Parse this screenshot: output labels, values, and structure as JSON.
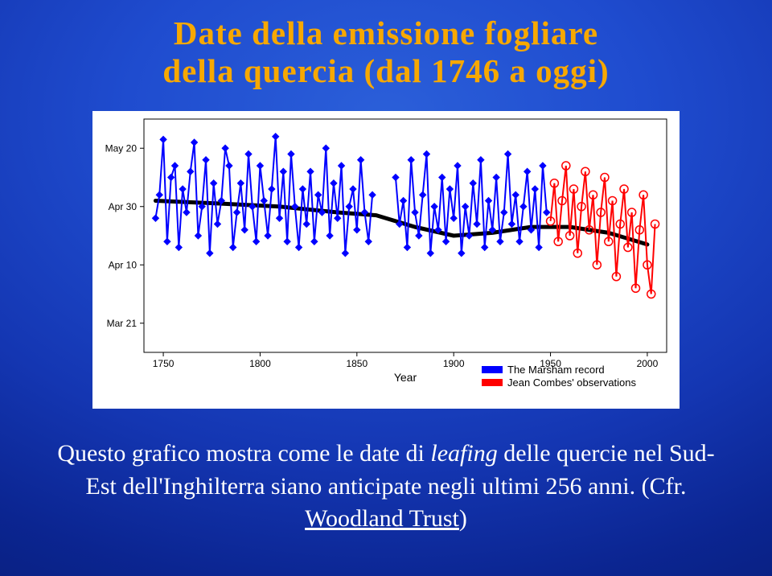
{
  "title": {
    "line1": "Date della emissione fogliare",
    "line2": "della quercia",
    "paren": "(dal 1746 a oggi)"
  },
  "chart": {
    "type": "line",
    "background_color": "#ffffff",
    "plot_border_color": "#000000",
    "plot_bg": "#ffffff",
    "x": {
      "label": "Year",
      "label_fontsize": 14,
      "lim": [
        1740,
        2010
      ],
      "ticks": [
        1750,
        1800,
        1850,
        1900,
        1950,
        2000
      ],
      "tick_fontsize": 12
    },
    "y": {
      "lim": [
        70,
        150
      ],
      "ticks": [
        {
          "v": 80,
          "label": "Mar 21"
        },
        {
          "v": 100,
          "label": "Apr 10"
        },
        {
          "v": 120,
          "label": "Apr 30"
        },
        {
          "v": 140,
          "label": "May 20"
        }
      ],
      "tick_fontsize": 12
    },
    "trend": {
      "color": "#000000",
      "width": 5,
      "pts": [
        [
          1746,
          122
        ],
        [
          1780,
          121
        ],
        [
          1810,
          120
        ],
        [
          1840,
          118
        ],
        [
          1860,
          117
        ],
        [
          1880,
          113
        ],
        [
          1900,
          110
        ],
        [
          1920,
          111
        ],
        [
          1940,
          113
        ],
        [
          1960,
          113
        ],
        [
          1980,
          111
        ],
        [
          2000,
          107
        ]
      ]
    },
    "series": [
      {
        "name": "The Marsham record",
        "color": "#0000ff",
        "width": 2,
        "marker": "diamond",
        "marker_size": 4,
        "gap_after": 1858,
        "pts": [
          [
            1746,
            116
          ],
          [
            1748,
            124
          ],
          [
            1750,
            143
          ],
          [
            1752,
            108
          ],
          [
            1754,
            130
          ],
          [
            1756,
            134
          ],
          [
            1758,
            106
          ],
          [
            1760,
            126
          ],
          [
            1762,
            118
          ],
          [
            1764,
            132
          ],
          [
            1766,
            142
          ],
          [
            1768,
            110
          ],
          [
            1770,
            120
          ],
          [
            1772,
            136
          ],
          [
            1774,
            104
          ],
          [
            1776,
            128
          ],
          [
            1778,
            114
          ],
          [
            1780,
            122
          ],
          [
            1782,
            140
          ],
          [
            1784,
            134
          ],
          [
            1786,
            106
          ],
          [
            1788,
            118
          ],
          [
            1790,
            128
          ],
          [
            1792,
            112
          ],
          [
            1794,
            138
          ],
          [
            1796,
            120
          ],
          [
            1798,
            108
          ],
          [
            1800,
            134
          ],
          [
            1802,
            122
          ],
          [
            1804,
            110
          ],
          [
            1806,
            126
          ],
          [
            1808,
            144
          ],
          [
            1810,
            116
          ],
          [
            1812,
            132
          ],
          [
            1814,
            108
          ],
          [
            1816,
            138
          ],
          [
            1818,
            120
          ],
          [
            1820,
            106
          ],
          [
            1822,
            126
          ],
          [
            1824,
            114
          ],
          [
            1826,
            132
          ],
          [
            1828,
            108
          ],
          [
            1830,
            124
          ],
          [
            1832,
            118
          ],
          [
            1834,
            140
          ],
          [
            1836,
            110
          ],
          [
            1838,
            128
          ],
          [
            1840,
            116
          ],
          [
            1842,
            134
          ],
          [
            1844,
            104
          ],
          [
            1846,
            120
          ],
          [
            1848,
            126
          ],
          [
            1850,
            112
          ],
          [
            1852,
            136
          ],
          [
            1854,
            118
          ],
          [
            1856,
            108
          ],
          [
            1858,
            124
          ],
          [
            1870,
            130
          ],
          [
            1872,
            114
          ],
          [
            1874,
            122
          ],
          [
            1876,
            106
          ],
          [
            1878,
            136
          ],
          [
            1880,
            118
          ],
          [
            1882,
            110
          ],
          [
            1884,
            124
          ],
          [
            1886,
            138
          ],
          [
            1888,
            104
          ],
          [
            1890,
            120
          ],
          [
            1892,
            112
          ],
          [
            1894,
            130
          ],
          [
            1896,
            108
          ],
          [
            1898,
            126
          ],
          [
            1900,
            116
          ],
          [
            1902,
            134
          ],
          [
            1904,
            104
          ],
          [
            1906,
            120
          ],
          [
            1908,
            110
          ],
          [
            1910,
            128
          ],
          [
            1912,
            114
          ],
          [
            1914,
            136
          ],
          [
            1916,
            106
          ],
          [
            1918,
            122
          ],
          [
            1920,
            112
          ],
          [
            1922,
            130
          ],
          [
            1924,
            108
          ],
          [
            1926,
            118
          ],
          [
            1928,
            138
          ],
          [
            1930,
            114
          ],
          [
            1932,
            124
          ],
          [
            1934,
            108
          ],
          [
            1936,
            120
          ],
          [
            1938,
            132
          ],
          [
            1940,
            112
          ],
          [
            1942,
            126
          ],
          [
            1944,
            106
          ],
          [
            1946,
            134
          ],
          [
            1948,
            118
          ]
        ]
      },
      {
        "name": "Jean Combes' observations",
        "color": "#ff0000",
        "width": 2,
        "marker": "circle",
        "marker_size": 5,
        "pts": [
          [
            1950,
            115
          ],
          [
            1952,
            128
          ],
          [
            1954,
            108
          ],
          [
            1956,
            122
          ],
          [
            1958,
            134
          ],
          [
            1960,
            110
          ],
          [
            1962,
            126
          ],
          [
            1964,
            104
          ],
          [
            1966,
            120
          ],
          [
            1968,
            132
          ],
          [
            1970,
            112
          ],
          [
            1972,
            124
          ],
          [
            1974,
            100
          ],
          [
            1976,
            118
          ],
          [
            1978,
            130
          ],
          [
            1980,
            108
          ],
          [
            1982,
            122
          ],
          [
            1984,
            96
          ],
          [
            1986,
            114
          ],
          [
            1988,
            126
          ],
          [
            1990,
            106
          ],
          [
            1992,
            118
          ],
          [
            1994,
            92
          ],
          [
            1996,
            112
          ],
          [
            1998,
            124
          ],
          [
            2000,
            100
          ],
          [
            2002,
            90
          ],
          [
            2004,
            114
          ]
        ]
      }
    ],
    "legend": {
      "position": "bottom-right",
      "swatch_w": 26,
      "fontsize": 13,
      "items": [
        {
          "label": "The Marsham record",
          "color": "#0000ff"
        },
        {
          "label": "Jean Combes' observations",
          "color": "#ff0000"
        }
      ]
    }
  },
  "body": {
    "t1": "Questo grafico mostra come le date di ",
    "em": "leafing",
    "t2": " delle quercie nel Sud-Est dell'Inghilterra siano anticipate negli ultimi 256 anni. (Cfr. ",
    "link": "Woodland Trust",
    "t3": ")"
  },
  "colors": {
    "title": "#f7a800",
    "body": "#ffffff"
  }
}
